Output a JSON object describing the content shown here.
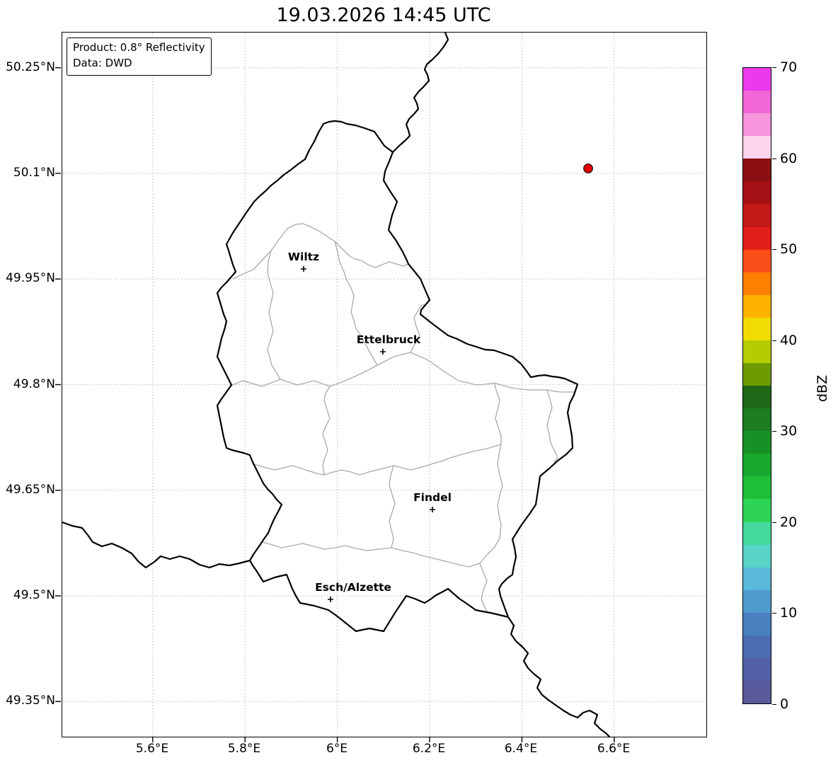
{
  "title": "19.03.2026 14:45 UTC",
  "info_box": {
    "product": "Product: 0.8° Reflectivity",
    "data_source": "Data: DWD"
  },
  "map": {
    "region": "Luxembourg",
    "x_tick_labels": [
      "5.6°E",
      "5.8°E",
      "6°E",
      "6.2°E",
      "6.4°E",
      "6.6°E"
    ],
    "y_tick_labels": [
      "50.25°N",
      "50.1°N",
      "49.95°N",
      "49.8°N",
      "49.65°N",
      "49.5°N",
      "49.35°N"
    ],
    "cities": [
      {
        "name": "Wiltz"
      },
      {
        "name": "Ettelbruck"
      },
      {
        "name": "Findel"
      },
      {
        "name": "Esch/Alzette"
      }
    ],
    "radar_point": {
      "color": "#e60000",
      "approx_lon": "6.54°E",
      "approx_lat": "50.10°N"
    }
  },
  "colorbar": {
    "label": "dBZ",
    "min": 0,
    "max": 70,
    "band_step_dbz": 2.5,
    "tick_labels": [
      "70",
      "60",
      "50",
      "40",
      "30",
      "20",
      "10",
      "0"
    ],
    "colors_top_to_bottom": [
      "#ea3aec",
      "#f266d8",
      "#f795dd",
      "#fcd4ee",
      "#8b0f12",
      "#a31114",
      "#c21818",
      "#e11f1a",
      "#fa4f18",
      "#fd8000",
      "#fdb300",
      "#f0dc00",
      "#b4cc00",
      "#6e9c00",
      "#1e6817",
      "#1d7d20",
      "#169126",
      "#18a82e",
      "#1fbf3a",
      "#2ed455",
      "#45d89e",
      "#57d3c8",
      "#5ab8d9",
      "#4f9bce",
      "#4a80c0",
      "#4c6cb1",
      "#5160a5",
      "#585a9b"
    ]
  }
}
